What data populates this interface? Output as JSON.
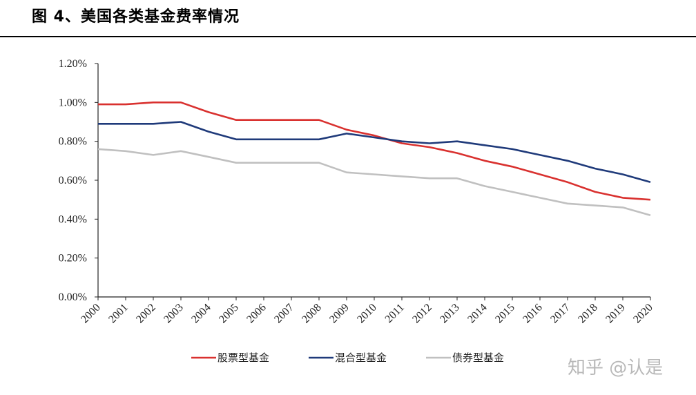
{
  "header": {
    "figure_title": "图 4、美国各类基金费率情况"
  },
  "watermark": "知乎 @认是",
  "chart_data": {
    "type": "line",
    "title": "",
    "xlabel": "",
    "ylabel": "",
    "x": [
      "2000",
      "2001",
      "2002",
      "2003",
      "2004",
      "2005",
      "2006",
      "2007",
      "2008",
      "2009",
      "2010",
      "2011",
      "2012",
      "2013",
      "2014",
      "2015",
      "2016",
      "2017",
      "2018",
      "2019",
      "2020"
    ],
    "ylim": [
      0,
      1.2
    ],
    "yticks": [
      0,
      0.2,
      0.4,
      0.6,
      0.8,
      1.0,
      1.2
    ],
    "ytick_labels": [
      "0.00%",
      "0.20%",
      "0.40%",
      "0.60%",
      "0.80%",
      "1.00%",
      "1.20%"
    ],
    "grid": false,
    "legend_position": "bottom",
    "series": [
      {
        "name": "股票型基金",
        "color": "#d9312f",
        "values": [
          0.99,
          0.99,
          1.0,
          1.0,
          0.95,
          0.91,
          0.91,
          0.91,
          0.91,
          0.86,
          0.83,
          0.79,
          0.77,
          0.74,
          0.7,
          0.67,
          0.63,
          0.59,
          0.54,
          0.51,
          0.5
        ]
      },
      {
        "name": "混合型基金",
        "color": "#1f3a7a",
        "values": [
          0.89,
          0.89,
          0.89,
          0.9,
          0.85,
          0.81,
          0.81,
          0.81,
          0.81,
          0.84,
          0.82,
          0.8,
          0.79,
          0.8,
          0.78,
          0.76,
          0.73,
          0.7,
          0.66,
          0.63,
          0.59
        ]
      },
      {
        "name": "债券型基金",
        "color": "#c0c0c0",
        "values": [
          0.76,
          0.75,
          0.73,
          0.75,
          0.72,
          0.69,
          0.69,
          0.69,
          0.69,
          0.64,
          0.63,
          0.62,
          0.61,
          0.61,
          0.57,
          0.54,
          0.51,
          0.48,
          0.47,
          0.46,
          0.42
        ]
      }
    ]
  }
}
